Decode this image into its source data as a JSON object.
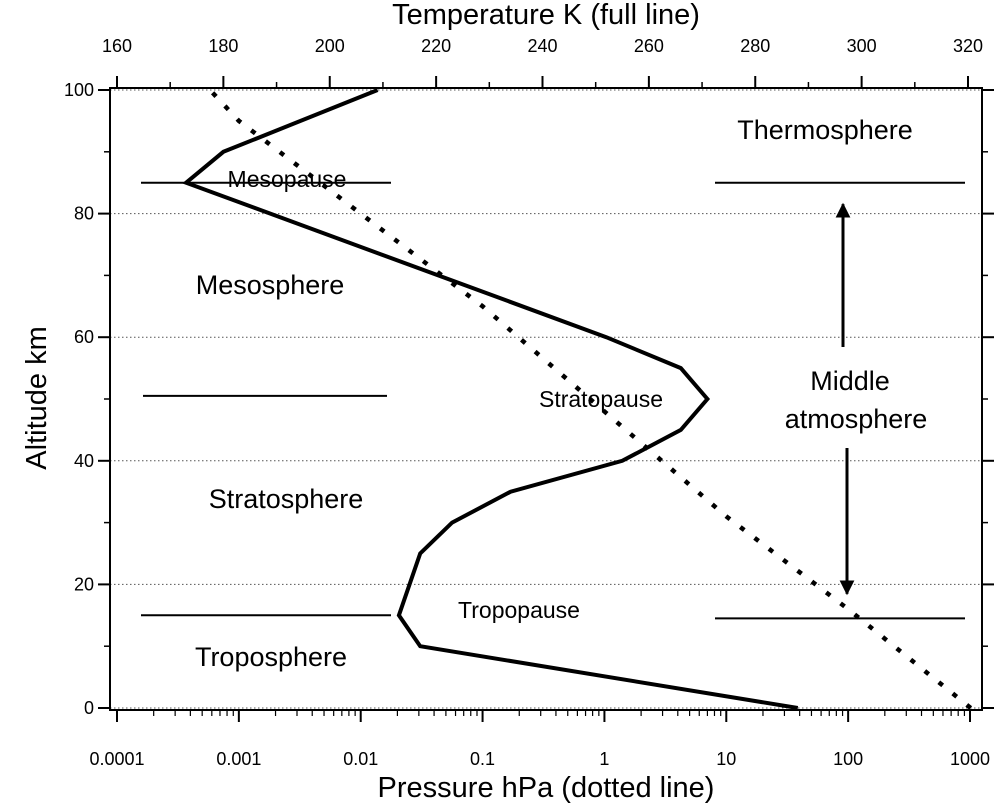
{
  "chart_data": {
    "type": "line",
    "title": "",
    "top_axis": {
      "label": "Temperature K (full line)",
      "range": [
        156,
        320
      ],
      "ticks": [
        160,
        180,
        200,
        220,
        240,
        260,
        280,
        300,
        320
      ],
      "tick_labels": [
        "160",
        "180",
        "200",
        "220",
        "240",
        "260",
        "280",
        "300",
        "320"
      ]
    },
    "bottom_axis": {
      "label": "Pressure hPa (dotted line)",
      "scale": "log",
      "range": [
        0.0001,
        1000
      ],
      "ticks": [
        0.0001,
        0.001,
        0.01,
        0.1,
        1,
        10,
        100,
        1000
      ],
      "tick_labels": [
        "0.0001",
        "0.001",
        "0.01",
        "0.1",
        "1",
        "10",
        "100",
        "1000"
      ]
    },
    "y_axis": {
      "label": "Altitude km",
      "range": [
        0,
        100
      ],
      "ticks": [
        0,
        20,
        40,
        60,
        80,
        100
      ],
      "tick_labels": [
        "0",
        "20",
        "40",
        "60",
        "80",
        "100"
      ]
    },
    "grid": "horizontal dotted lines at major y ticks",
    "series": [
      {
        "key": "temperature",
        "axis": "top",
        "style": "solid",
        "points": [
          {
            "x": 288,
            "y": 0
          },
          {
            "x": 217,
            "y": 10
          },
          {
            "x": 213,
            "y": 15
          },
          {
            "x": 217,
            "y": 25
          },
          {
            "x": 223,
            "y": 30
          },
          {
            "x": 234,
            "y": 35
          },
          {
            "x": 255,
            "y": 40
          },
          {
            "x": 266,
            "y": 45
          },
          {
            "x": 271,
            "y": 50
          },
          {
            "x": 266,
            "y": 55
          },
          {
            "x": 252,
            "y": 60
          },
          {
            "x": 173,
            "y": 85
          },
          {
            "x": 180,
            "y": 90
          },
          {
            "x": 209,
            "y": 100
          }
        ]
      },
      {
        "key": "pressure",
        "axis": "bottom",
        "style": "dotted",
        "points": [
          {
            "x": 1013,
            "y": 0
          },
          {
            "x": 100,
            "y": 16
          },
          {
            "x": 10,
            "y": 31
          },
          {
            "x": 1,
            "y": 48
          },
          {
            "x": 0.1,
            "y": 65
          },
          {
            "x": 0.01,
            "y": 80
          },
          {
            "x": 0.001,
            "y": 95
          },
          {
            "x": 0.00058,
            "y": 100
          }
        ]
      }
    ],
    "annotations": {
      "thermosphere": "Thermosphere",
      "mesopause": "Mesopause",
      "mesosphere": "Mesosphere",
      "stratopause": "Stratopause",
      "stratosphere": "Stratosphere",
      "tropopause": "Tropopause",
      "troposphere": "Troposphere",
      "middle_line1": "Middle",
      "middle_line2": "atmosphere"
    },
    "boundary_lines_km": {
      "mesopause_left": 85,
      "thermosphere_right": 85,
      "stratopause_left": 50.5,
      "tropopause_left": 15,
      "tropopause_right": 14.5
    },
    "middle_atmosphere_arrow_km": [
      18,
      82
    ]
  }
}
